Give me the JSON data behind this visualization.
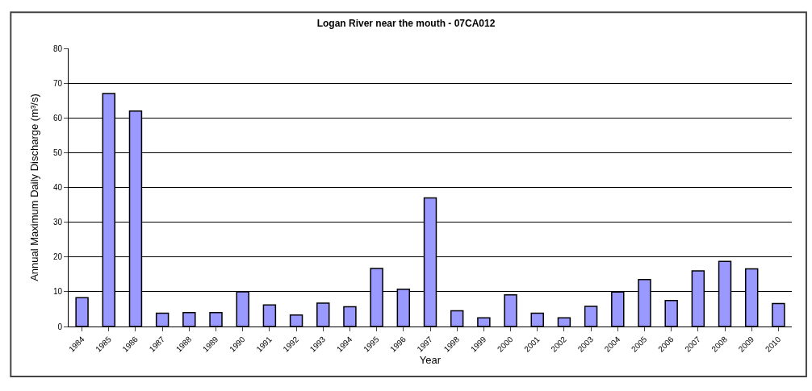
{
  "chart_data": {
    "type": "bar",
    "title": "Logan River near the mouth - 07CA012",
    "xlabel": "Year",
    "ylabel": "Annual Maximum Daily Discharge (m³/s)",
    "categories": [
      "1984",
      "1985",
      "1986",
      "1987",
      "1988",
      "1989",
      "1990",
      "1991",
      "1992",
      "1993",
      "1994",
      "1995",
      "1996",
      "1997",
      "1998",
      "1999",
      "2000",
      "2001",
      "2002",
      "2003",
      "2004",
      "2005",
      "2006",
      "2007",
      "2008",
      "2009",
      "2010"
    ],
    "values": [
      8.3,
      67,
      62,
      3.8,
      4,
      4,
      10,
      6.2,
      3.3,
      6.7,
      5.7,
      16.7,
      10.7,
      37,
      4.5,
      2.5,
      9.1,
      3.8,
      2.5,
      5.8,
      9.9,
      13.5,
      7.5,
      16,
      18.7,
      16.6,
      6.6
    ],
    "color": "#9999ff",
    "ylim": [
      0,
      80
    ],
    "yticks": [
      0,
      10,
      20,
      30,
      40,
      50,
      60,
      70,
      80
    ],
    "grid": "y"
  }
}
